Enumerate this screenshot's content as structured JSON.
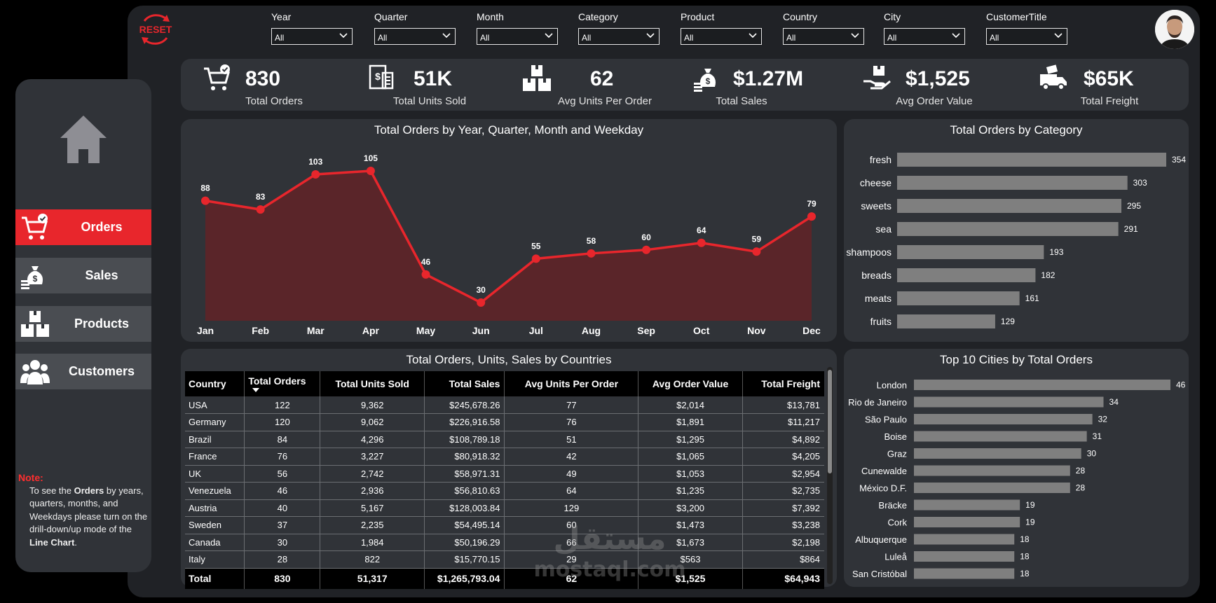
{
  "reset_label": "RESET",
  "filters": [
    {
      "label": "Year",
      "value": "All"
    },
    {
      "label": "Quarter",
      "value": "All"
    },
    {
      "label": "Month",
      "value": "All"
    },
    {
      "label": "Category",
      "value": "All"
    },
    {
      "label": "Product",
      "value": "All"
    },
    {
      "label": "Country",
      "value": "All"
    },
    {
      "label": "City",
      "value": "All"
    },
    {
      "label": "CustomerTitle",
      "value": "All"
    }
  ],
  "nav": {
    "items": [
      {
        "label": "Orders",
        "icon": "cart-check-icon",
        "active": true
      },
      {
        "label": "Sales",
        "icon": "money-bag-icon",
        "active": false
      },
      {
        "label": "Products",
        "icon": "boxes-icon",
        "active": false
      },
      {
        "label": "Customers",
        "icon": "users-icon",
        "active": false
      }
    ]
  },
  "note": {
    "title": "Note:",
    "p1": "To see the ",
    "b1": "Orders",
    "p2": " by years, quarters, months, and Weekdays please turn on the drill-down/up mode of the ",
    "b2": "Line Chart",
    "p3": "."
  },
  "kpis": [
    {
      "value": "830",
      "label": "Total Orders",
      "icon": "cart-check-icon"
    },
    {
      "value": "51K",
      "label": "Total Units Sold",
      "icon": "receipt-icon"
    },
    {
      "value": "62",
      "label": "Avg Units Per Order",
      "icon": "boxes-icon"
    },
    {
      "value": "$1.27M",
      "label": "Total Sales",
      "icon": "money-bag-icon"
    },
    {
      "value": "$1,525",
      "label": "Avg Order Value",
      "icon": "hand-box-icon"
    },
    {
      "value": "$65K",
      "label": "Total Freight",
      "icon": "delivery-truck-icon"
    }
  ],
  "chart_data": [
    {
      "type": "area",
      "title": "Total Orders by Year, Quarter, Month and Weekday",
      "categories": [
        "Jan",
        "Feb",
        "Mar",
        "Apr",
        "May",
        "Jun",
        "Jul",
        "Aug",
        "Sep",
        "Oct",
        "Nov",
        "Dec"
      ],
      "values": [
        88,
        83,
        103,
        105,
        46,
        30,
        55,
        58,
        60,
        64,
        59,
        79
      ],
      "ylim": [
        0,
        110
      ],
      "grid": false,
      "color": "#e8262c",
      "fill": "#5a2529"
    },
    {
      "type": "bar",
      "orientation": "horizontal",
      "title": "Total Orders by Category",
      "categories": [
        "fresh",
        "cheese",
        "sweets",
        "sea",
        "shampoos",
        "breads",
        "meats",
        "fruits"
      ],
      "values": [
        354,
        303,
        295,
        291,
        193,
        182,
        161,
        129
      ],
      "xlim": [
        0,
        354
      ],
      "color": "#7f7f7f"
    },
    {
      "type": "bar",
      "orientation": "horizontal",
      "title": "Top 10 Cities by Total Orders",
      "categories": [
        "London",
        "Rio de Janeiro",
        "São Paulo",
        "Boise",
        "Graz",
        "Cunewalde",
        "México D.F.",
        "Bräcke",
        "Cork",
        "Albuquerque",
        "Luleå",
        "San Cristóbal"
      ],
      "values": [
        46,
        34,
        32,
        31,
        30,
        28,
        28,
        19,
        19,
        18,
        18,
        18
      ],
      "xlim": [
        0,
        46
      ],
      "color": "#7f7f7f"
    },
    {
      "type": "table",
      "title": "Total Orders, Units, Sales by Countries",
      "columns": [
        "Country",
        "Total Orders",
        "Total Units Sold",
        "Total Sales",
        "Avg Units Per Order",
        "Avg Order Value",
        "Total Freight"
      ],
      "rows": [
        [
          "USA",
          "122",
          "9,362",
          "$245,678.26",
          "77",
          "$2,014",
          "$13,781"
        ],
        [
          "Germany",
          "120",
          "9,062",
          "$226,916.58",
          "76",
          "$1,891",
          "$11,217"
        ],
        [
          "Brazil",
          "84",
          "4,296",
          "$108,789.18",
          "51",
          "$1,295",
          "$4,892"
        ],
        [
          "France",
          "76",
          "3,227",
          "$80,918.32",
          "42",
          "$1,065",
          "$4,205"
        ],
        [
          "UK",
          "56",
          "2,742",
          "$58,971.31",
          "49",
          "$1,053",
          "$2,954"
        ],
        [
          "Venezuela",
          "46",
          "2,936",
          "$56,810.63",
          "64",
          "$1,235",
          "$2,735"
        ],
        [
          "Austria",
          "40",
          "5,167",
          "$128,003.84",
          "129",
          "$3,200",
          "$7,392"
        ],
        [
          "Sweden",
          "37",
          "2,235",
          "$54,495.14",
          "60",
          "$1,473",
          "$3,238"
        ],
        [
          "Canada",
          "30",
          "1,984",
          "$50,196.29",
          "66",
          "$1,673",
          "$2,198"
        ],
        [
          "Italy",
          "28",
          "822",
          "$15,770.15",
          "29",
          "$563",
          "$864"
        ]
      ],
      "total": [
        "Total",
        "830",
        "51,317",
        "$1,265,793.04",
        "62",
        "$1,525",
        "$64,943"
      ]
    }
  ],
  "watermark": {
    "arabic": "مستقل",
    "latin": "mostaql.com"
  }
}
